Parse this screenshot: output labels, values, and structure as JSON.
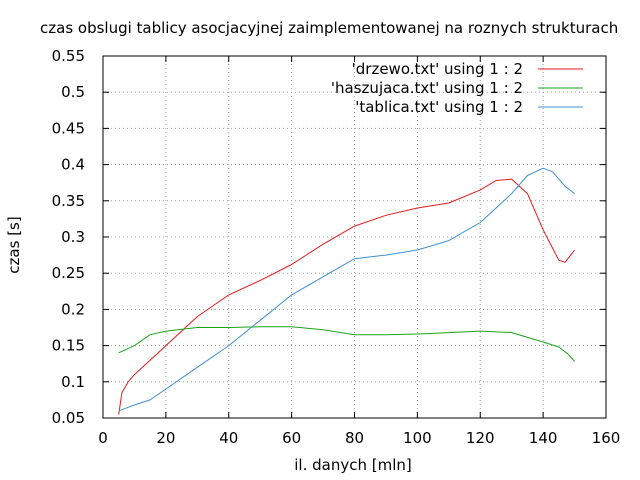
{
  "chart_data": {
    "type": "line",
    "title": "czas obslugi tablicy asocjacyjnej zaimplementowanej na roznych strukturach",
    "xlabel": "il. danych [mln]",
    "ylabel": "czas [s]",
    "xlim": [
      0,
      160
    ],
    "ylim": [
      0.05,
      0.55
    ],
    "xticks": [
      0,
      20,
      40,
      60,
      80,
      100,
      120,
      140,
      160
    ],
    "yticks": [
      0.05,
      0.1,
      0.15,
      0.2,
      0.25,
      0.3,
      0.35,
      0.4,
      0.45,
      0.5,
      0.55
    ],
    "xtick_labels": [
      "0",
      "20",
      "40",
      "60",
      "80",
      "100",
      "120",
      "140",
      "160"
    ],
    "ytick_labels": [
      "0.05",
      "0.1",
      "0.15",
      "0.2",
      "0.25",
      "0.3",
      "0.35",
      "0.4",
      "0.45",
      "0.5",
      "0.55"
    ],
    "grid": true,
    "legend_position": "top-right",
    "series": [
      {
        "name": "'drzewo.txt' using 1 : 2",
        "color": "#e41a1c",
        "x": [
          5,
          6,
          8,
          10,
          15,
          20,
          25,
          30,
          40,
          50,
          60,
          70,
          80,
          90,
          100,
          110,
          120,
          125,
          130,
          135,
          140,
          145,
          147,
          150
        ],
        "y": [
          0.055,
          0.085,
          0.1,
          0.11,
          0.13,
          0.15,
          0.17,
          0.19,
          0.22,
          0.24,
          0.262,
          0.29,
          0.315,
          0.33,
          0.34,
          0.347,
          0.365,
          0.378,
          0.38,
          0.36,
          0.31,
          0.268,
          0.265,
          0.282
        ]
      },
      {
        "name": "'haszujaca.txt' using 1 : 2",
        "color": "#1aa51a",
        "x": [
          5,
          10,
          15,
          20,
          30,
          40,
          50,
          60,
          70,
          80,
          90,
          100,
          110,
          120,
          130,
          140,
          145,
          148,
          150
        ],
        "y": [
          0.14,
          0.15,
          0.165,
          0.17,
          0.175,
          0.175,
          0.176,
          0.176,
          0.172,
          0.165,
          0.165,
          0.166,
          0.168,
          0.17,
          0.168,
          0.155,
          0.148,
          0.138,
          0.128
        ]
      },
      {
        "name": "'tablica.txt' using 1 : 2",
        "color": "#3f8fd2",
        "x": [
          5,
          10,
          15,
          20,
          30,
          40,
          50,
          60,
          70,
          80,
          90,
          100,
          110,
          120,
          130,
          135,
          140,
          143,
          147,
          150
        ],
        "y": [
          0.06,
          0.068,
          0.075,
          0.09,
          0.12,
          0.15,
          0.185,
          0.22,
          0.245,
          0.27,
          0.275,
          0.282,
          0.295,
          0.32,
          0.36,
          0.385,
          0.395,
          0.39,
          0.37,
          0.36
        ]
      }
    ]
  }
}
